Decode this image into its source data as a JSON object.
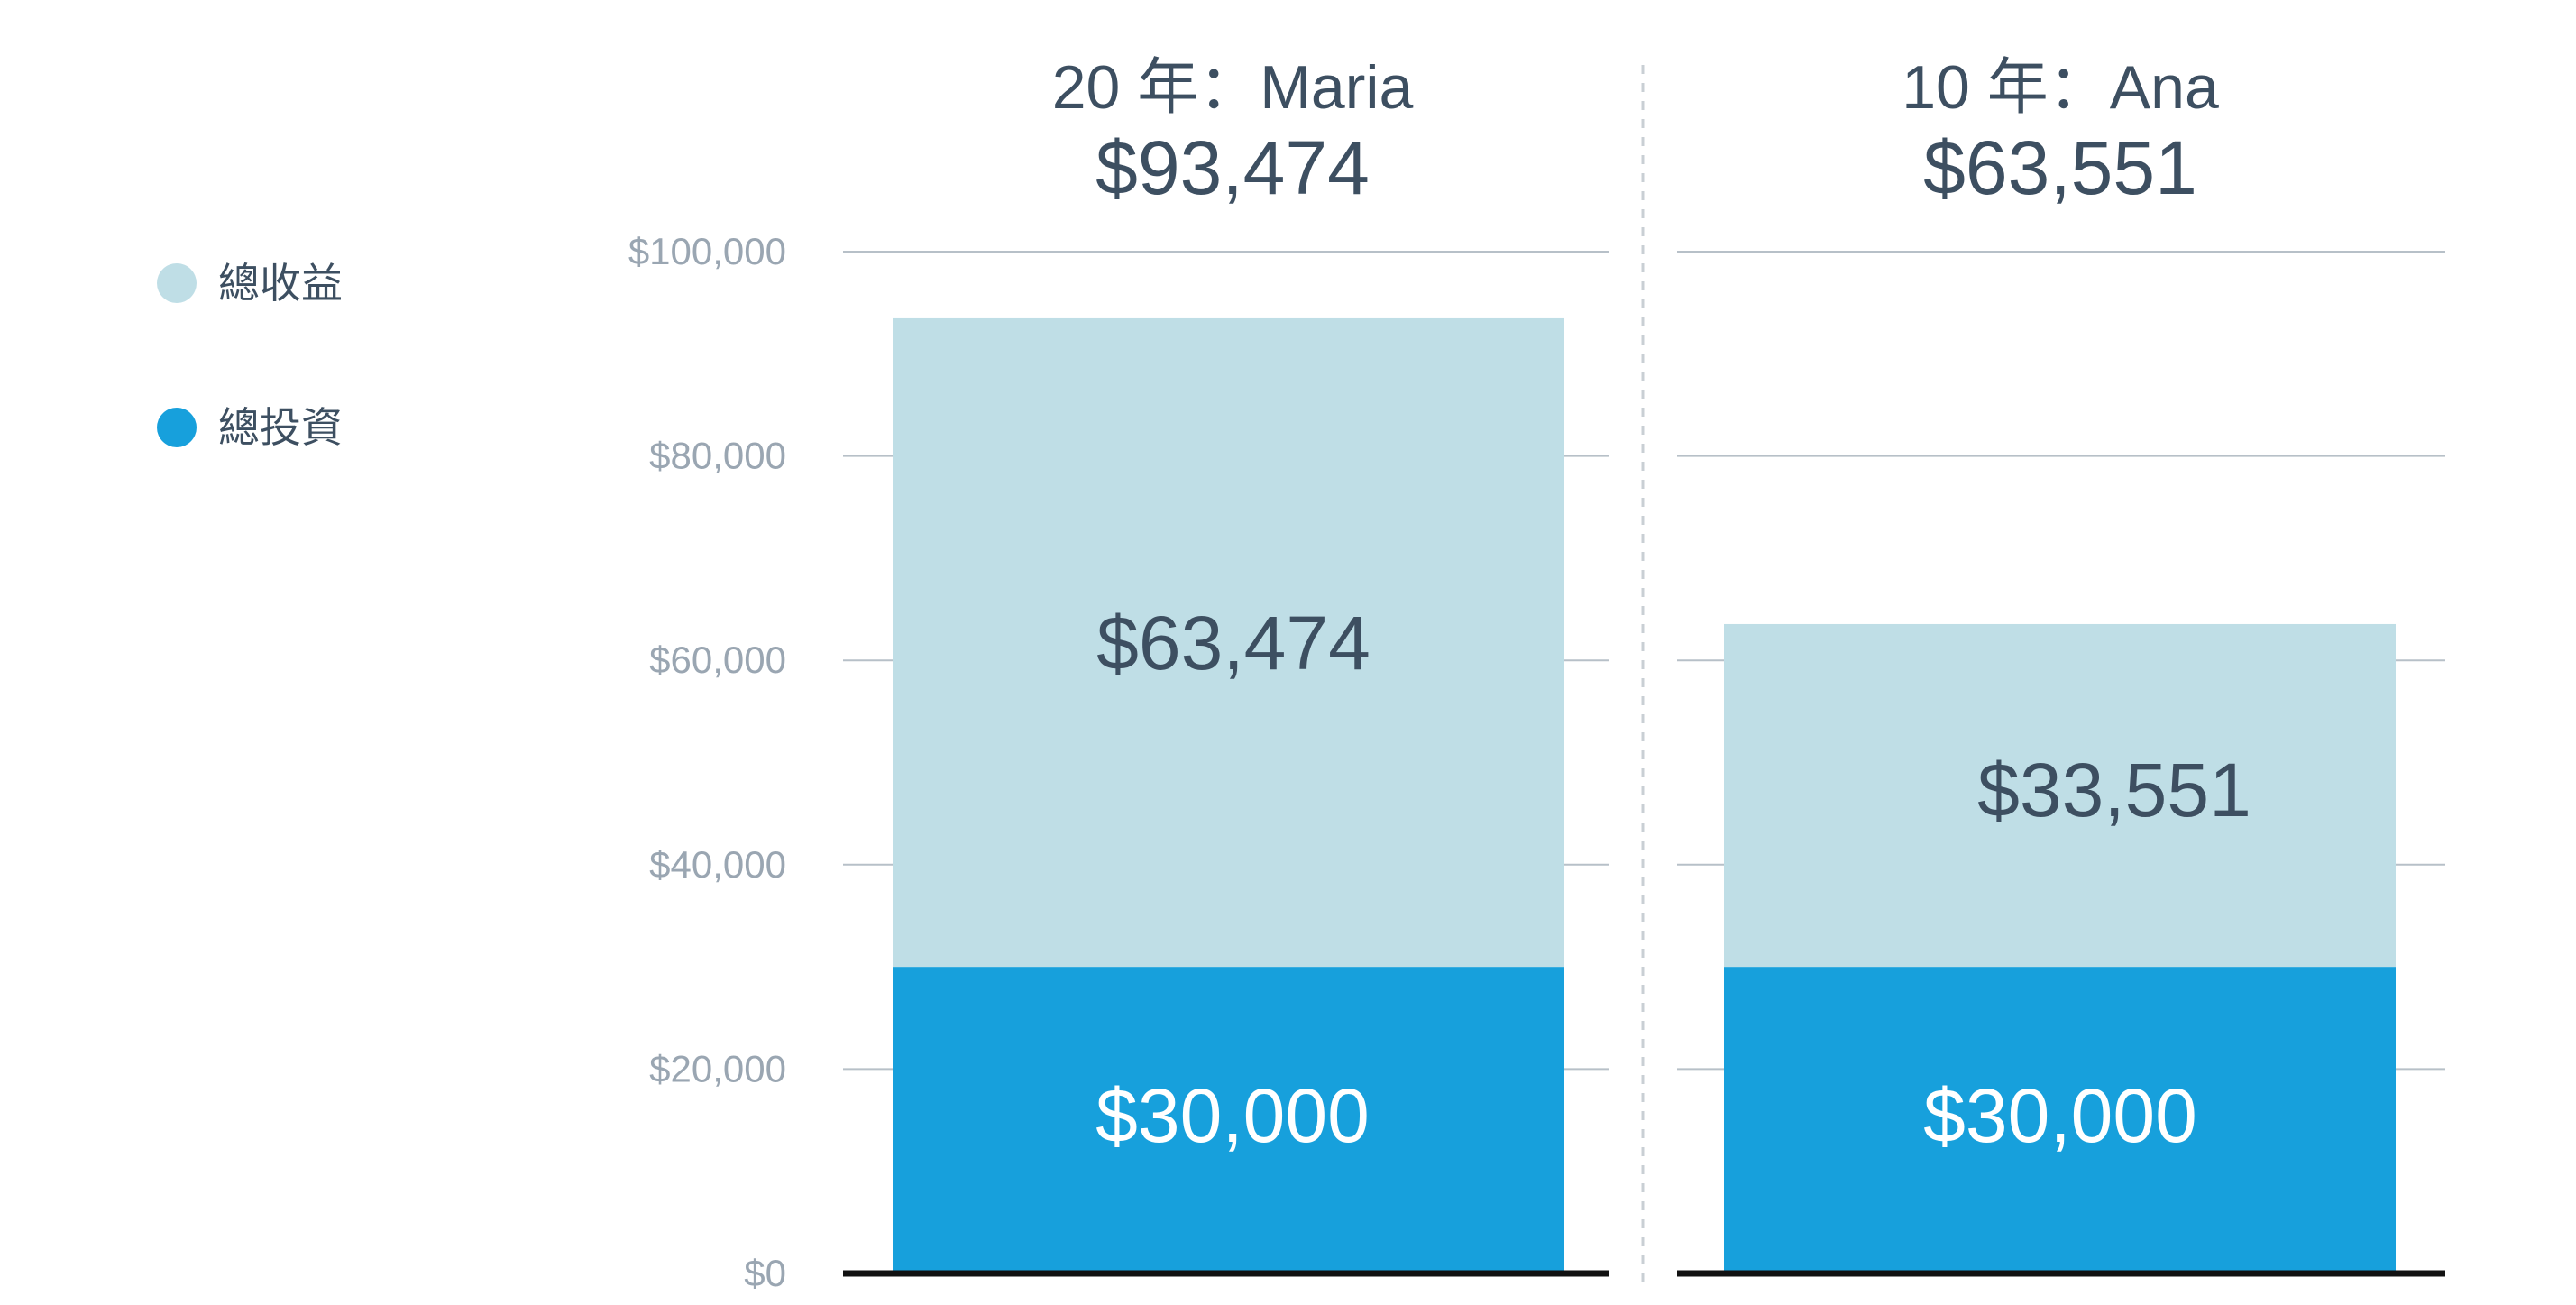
{
  "chart_data": {
    "type": "bar",
    "stacked": true,
    "ylim": [
      0,
      100000
    ],
    "yticks": [
      "$0",
      "$20,000",
      "$40,000",
      "$60,000",
      "$80,000",
      "$100,000"
    ],
    "ytick_values": [
      0,
      20000,
      40000,
      60000,
      80000,
      100000
    ],
    "grid": true,
    "legend": {
      "placement": "left",
      "items": [
        {
          "label": "總收益",
          "color": "#bfdee6"
        },
        {
          "label": "總投資",
          "color": "#17a0dc"
        }
      ]
    },
    "groups": [
      {
        "title": "20 年：Maria",
        "total_label": "$93,474",
        "total": 93474,
        "segments": [
          {
            "series": "總投資",
            "value": 30000,
            "label": "$30,000"
          },
          {
            "series": "總收益",
            "value": 63474,
            "label": "$63,474"
          }
        ]
      },
      {
        "title": "10 年：Ana",
        "total_label": "$63,551",
        "total": 63551,
        "segments": [
          {
            "series": "總投資",
            "value": 30000,
            "label": "$30,000"
          },
          {
            "series": "總收益",
            "value": 33551,
            "label": "$33,551"
          }
        ]
      }
    ],
    "colors": {
      "gain": "#bfdee6",
      "invested": "#17a0dc",
      "text_dark": "#3d4f61",
      "tick_text": "#9aa6b2",
      "grid": "#b7c0c8",
      "baseline": "#111111",
      "divider": "#c9cfd4"
    }
  }
}
